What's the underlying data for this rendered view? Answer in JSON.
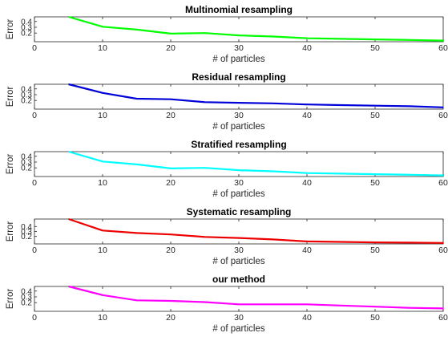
{
  "chart_data": [
    {
      "type": "line",
      "title": "Multinomial resampling",
      "xlabel": "# of particles",
      "ylabel": "Error",
      "xlim": [
        0,
        60
      ],
      "ylim": [
        0.05,
        0.48
      ],
      "xticks": [
        "0",
        "10",
        "20",
        "30",
        "40",
        "50",
        "60"
      ],
      "yticks": [
        "0.2",
        "0.3",
        "0.4"
      ],
      "series": [
        {
          "color": "#00ff00",
          "x": [
            5,
            10,
            15,
            20,
            25,
            30,
            35,
            40,
            45,
            50,
            55,
            60
          ],
          "y": [
            0.48,
            0.31,
            0.26,
            0.19,
            0.2,
            0.16,
            0.14,
            0.11,
            0.1,
            0.09,
            0.08,
            0.07
          ]
        }
      ]
    },
    {
      "type": "line",
      "title": "Residual resampling",
      "xlabel": "# of particles",
      "ylabel": "Error",
      "xlim": [
        0,
        60
      ],
      "ylim": [
        0.05,
        0.48
      ],
      "xticks": [
        "0",
        "10",
        "20",
        "30",
        "40",
        "50",
        "60"
      ],
      "yticks": [
        "0.2",
        "0.3",
        "0.4"
      ],
      "series": [
        {
          "color": "#0000d8",
          "x": [
            5,
            10,
            15,
            20,
            25,
            30,
            35,
            40,
            45,
            50,
            55,
            60
          ],
          "y": [
            0.48,
            0.33,
            0.23,
            0.22,
            0.17,
            0.16,
            0.15,
            0.13,
            0.12,
            0.11,
            0.1,
            0.08
          ]
        }
      ]
    },
    {
      "type": "line",
      "title": "Stratified resampling",
      "xlabel": "# of particles",
      "ylabel": "Error",
      "xlim": [
        0,
        60
      ],
      "ylim": [
        0.05,
        0.48
      ],
      "xticks": [
        "0",
        "10",
        "20",
        "30",
        "40",
        "50",
        "60"
      ],
      "yticks": [
        "0.2",
        "0.3",
        "0.4"
      ],
      "series": [
        {
          "color": "#00ffff",
          "x": [
            5,
            10,
            15,
            20,
            25,
            30,
            35,
            40,
            45,
            50,
            55,
            60
          ],
          "y": [
            0.48,
            0.31,
            0.26,
            0.19,
            0.2,
            0.16,
            0.14,
            0.11,
            0.1,
            0.09,
            0.08,
            0.07
          ]
        }
      ]
    },
    {
      "type": "line",
      "title": "Systematic resampling",
      "xlabel": "# of particles",
      "ylabel": "Error",
      "xlim": [
        0,
        60
      ],
      "ylim": [
        0.05,
        0.55
      ],
      "xticks": [
        "0",
        "10",
        "20",
        "30",
        "40",
        "50",
        "60"
      ],
      "yticks": [
        "0.2",
        "0.3",
        "0.4"
      ],
      "series": [
        {
          "color": "#ee0000",
          "x": [
            5,
            10,
            15,
            20,
            25,
            30,
            35,
            40,
            45,
            50,
            55,
            60
          ],
          "y": [
            0.55,
            0.32,
            0.27,
            0.24,
            0.19,
            0.17,
            0.14,
            0.1,
            0.09,
            0.08,
            0.075,
            0.07
          ]
        }
      ]
    },
    {
      "type": "line",
      "title": "our method",
      "xlabel": "# of particles",
      "ylabel": "Error",
      "xlim": [
        0,
        60
      ],
      "ylim": [
        0.05,
        0.48
      ],
      "xticks": [
        "0",
        "10",
        "20",
        "30",
        "40",
        "50",
        "60"
      ],
      "yticks": [
        "0.2",
        "0.3",
        "0.4"
      ],
      "series": [
        {
          "color": "#ff00ff",
          "x": [
            5,
            10,
            15,
            20,
            25,
            30,
            35,
            40,
            45,
            50,
            55,
            60
          ],
          "y": [
            0.48,
            0.33,
            0.24,
            0.23,
            0.21,
            0.17,
            0.17,
            0.17,
            0.15,
            0.13,
            0.11,
            0.1
          ]
        }
      ]
    }
  ]
}
